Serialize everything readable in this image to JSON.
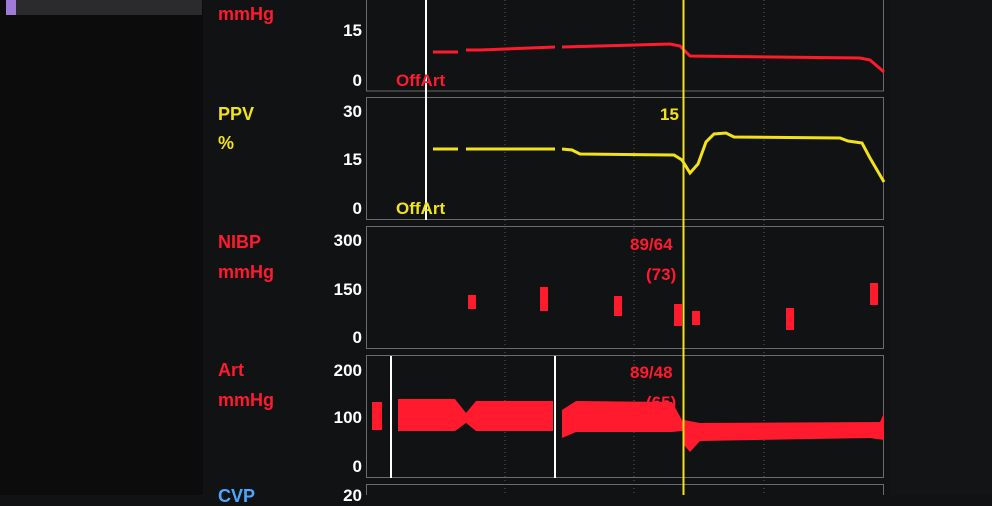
{
  "colors": {
    "red": "#ff1a2e",
    "yellow": "#f2e21a",
    "blue": "#4aa8ff",
    "axis": "#6b6b6b",
    "cursor": "#f2e21a"
  },
  "sidebar": {
    "selected_tab": "sidebar-tab"
  },
  "panels": {
    "top": {
      "unit": "mmHg",
      "ticks": [
        "15",
        "0"
      ],
      "status": "OffArt"
    },
    "ppv": {
      "label": "PPV",
      "unit": "%",
      "ticks": [
        "30",
        "15",
        "0"
      ],
      "cursor_value": "15",
      "status": "OffArt"
    },
    "nibp": {
      "label": "NIBP",
      "unit": "mmHg",
      "ticks": [
        "300",
        "150",
        "0"
      ],
      "cursor_value": "89/64",
      "cursor_mean": "(73)"
    },
    "art": {
      "label": "Art",
      "unit": "mmHg",
      "ticks": [
        "200",
        "100",
        "0"
      ],
      "cursor_value": "89/48",
      "cursor_mean": "(65)"
    },
    "cvp": {
      "label": "CVP",
      "ticks": [
        "20"
      ]
    }
  }
}
